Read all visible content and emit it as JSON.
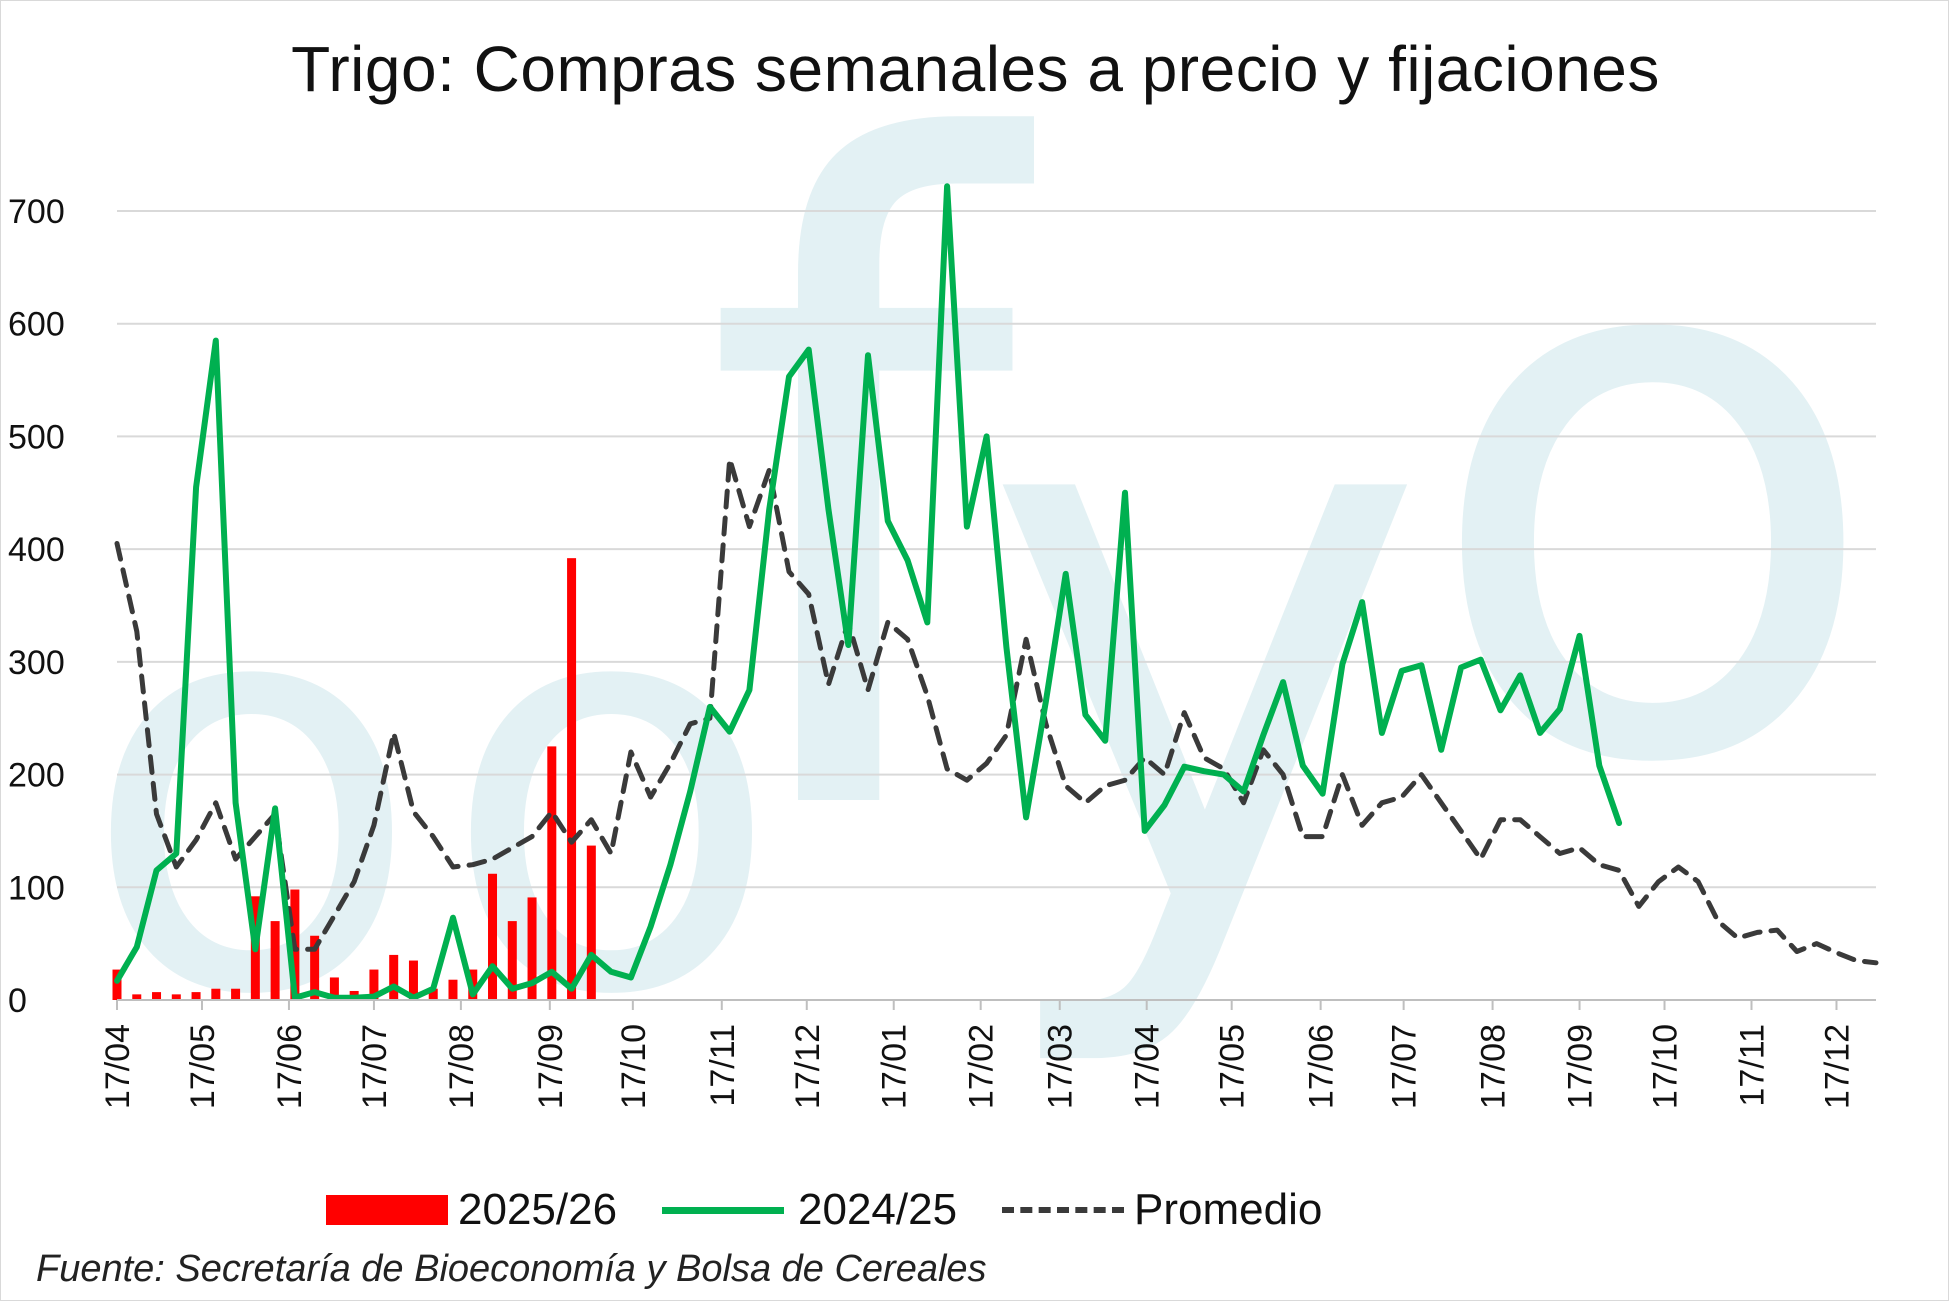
{
  "title": "Trigo: Compras semanales a precio y fijaciones",
  "source": "Fuente: Secretaría de Bioeconomía y Bolsa de Cereales",
  "watermark": "ofyo",
  "colors": {
    "bars": "#ff0000",
    "line_2024": "#00b050",
    "line_avg": "#3a3a3a",
    "grid": "#d9d9d9",
    "watermark": "#e3f1f4"
  },
  "chart_data": {
    "type": "bar+line",
    "title": "Trigo: Compras semanales a precio y fijaciones",
    "ylim": [
      0,
      700
    ],
    "yticks": [
      0,
      100,
      200,
      300,
      400,
      500,
      600,
      700
    ],
    "xlim": [
      0,
      89
    ],
    "xticks": [
      {
        "label": "17/04",
        "week": 0
      },
      {
        "label": "17/05",
        "week": 4.3
      },
      {
        "label": "17/06",
        "week": 8.7
      },
      {
        "label": "17/07",
        "week": 13
      },
      {
        "label": "17/08",
        "week": 17.4
      },
      {
        "label": "17/09",
        "week": 21.9
      },
      {
        "label": "17/10",
        "week": 26.1
      },
      {
        "label": "17/11",
        "week": 30.6
      },
      {
        "label": "17/12",
        "week": 34.9
      },
      {
        "label": "17/01",
        "week": 39.3
      },
      {
        "label": "17/02",
        "week": 43.7
      },
      {
        "label": "17/03",
        "week": 47.7
      },
      {
        "label": "17/04",
        "week": 52.1
      },
      {
        "label": "17/05",
        "week": 56.4
      },
      {
        "label": "17/06",
        "week": 60.9
      },
      {
        "label": "17/07",
        "week": 65.1
      },
      {
        "label": "17/08",
        "week": 69.6
      },
      {
        "label": "17/09",
        "week": 74.0
      },
      {
        "label": "17/10",
        "week": 78.3
      },
      {
        "label": "17/11",
        "week": 82.7
      },
      {
        "label": "17/12",
        "week": 87.0
      }
    ],
    "legend": [
      "2025/26",
      "2024/25",
      "Promedio"
    ],
    "series": [
      {
        "name": "2025/26",
        "type": "bar",
        "x": [
          0,
          1,
          2,
          3,
          4,
          5,
          6,
          7,
          8,
          9,
          10,
          11,
          12,
          13,
          14,
          15,
          16,
          17,
          18,
          19,
          20,
          21,
          22,
          23,
          24
        ],
        "values": [
          27,
          5,
          7,
          5,
          7,
          10,
          10,
          92,
          70,
          98,
          57,
          20,
          8,
          27,
          40,
          35,
          10,
          18,
          27,
          112,
          70,
          91,
          225,
          392,
          137
        ]
      },
      {
        "name": "2024/25",
        "type": "line",
        "x": [
          0,
          1,
          2,
          3,
          4,
          5,
          6,
          7,
          8,
          9,
          10,
          11,
          12,
          13,
          14,
          15,
          16,
          17,
          18,
          19,
          20,
          21,
          22,
          23,
          24,
          25,
          26,
          27,
          28,
          29,
          30,
          31,
          32,
          33,
          34,
          35,
          36,
          37,
          38,
          39,
          40,
          41,
          42,
          43,
          44,
          45,
          46,
          47,
          48,
          49,
          50,
          51,
          52,
          53,
          54,
          55,
          56,
          57,
          58,
          59,
          60,
          61,
          62,
          63,
          64,
          65,
          66,
          67,
          68,
          69,
          70,
          71,
          72,
          73,
          74,
          75,
          76
        ],
        "values": [
          17,
          47,
          115,
          130,
          455,
          585,
          175,
          45,
          170,
          2,
          7,
          2,
          2,
          3,
          12,
          2,
          10,
          73,
          5,
          30,
          10,
          15,
          25,
          10,
          40,
          25,
          20,
          65,
          120,
          185,
          260,
          238,
          275,
          435,
          553,
          577,
          435,
          315,
          572,
          425,
          390,
          335,
          722,
          420,
          500,
          313,
          162,
          265,
          378,
          253,
          230,
          450,
          150,
          173,
          207,
          203,
          200,
          185,
          235,
          282,
          208,
          183,
          298,
          353,
          237,
          292,
          297,
          222,
          295,
          302,
          257,
          288,
          237,
          258,
          323,
          208,
          157
        ]
      },
      {
        "name": "Promedio",
        "type": "line",
        "x": [
          0,
          1,
          2,
          3,
          4,
          5,
          6,
          7,
          8,
          9,
          10,
          11,
          12,
          13,
          14,
          15,
          16,
          17,
          18,
          19,
          20,
          21,
          22,
          23,
          24,
          25,
          26,
          27,
          28,
          29,
          30,
          31,
          32,
          33,
          34,
          35,
          36,
          37,
          38,
          39,
          40,
          41,
          42,
          43,
          44,
          45,
          46,
          47,
          48,
          49,
          50,
          51,
          52,
          53,
          54,
          55,
          56,
          57,
          58,
          59,
          60,
          61,
          62,
          63,
          64,
          65,
          66,
          67,
          68,
          69,
          70,
          71,
          72,
          73,
          74,
          75,
          76,
          77,
          78,
          79,
          80,
          81,
          82,
          83,
          84,
          85,
          86,
          87,
          88,
          89
        ],
        "values": [
          405,
          327,
          165,
          118,
          142,
          175,
          125,
          145,
          165,
          45,
          45,
          75,
          105,
          155,
          237,
          167,
          145,
          118,
          120,
          125,
          135,
          145,
          167,
          140,
          160,
          130,
          220,
          180,
          210,
          245,
          250,
          480,
          420,
          470,
          380,
          360,
          280,
          335,
          275,
          335,
          320,
          270,
          205,
          195,
          210,
          235,
          320,
          245,
          190,
          175,
          190,
          195,
          215,
          200,
          255,
          215,
          205,
          175,
          222,
          200,
          145,
          145,
          200,
          155,
          175,
          180,
          200,
          175,
          150,
          125,
          160,
          160,
          145,
          130,
          135,
          120,
          115,
          83,
          105,
          118,
          105,
          70,
          55,
          60,
          62,
          43,
          50,
          42,
          35,
          33
        ]
      }
    ]
  }
}
